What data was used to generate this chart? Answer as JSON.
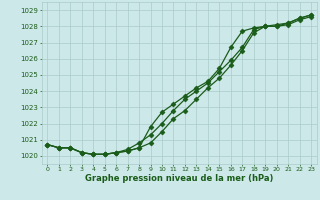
{
  "x": [
    0,
    1,
    2,
    3,
    4,
    5,
    6,
    7,
    8,
    9,
    10,
    11,
    12,
    13,
    14,
    15,
    16,
    17,
    18,
    19,
    20,
    21,
    22,
    23
  ],
  "line1": [
    1020.7,
    1020.5,
    1020.5,
    1020.2,
    1020.1,
    1020.1,
    1020.2,
    1020.4,
    1020.8,
    1021.3,
    1022.0,
    1022.8,
    1023.5,
    1024.0,
    1024.5,
    1025.2,
    1025.9,
    1026.7,
    1027.8,
    1028.0,
    1028.0,
    1028.2,
    1028.5,
    1028.7
  ],
  "line2": [
    1020.7,
    1020.5,
    1020.5,
    1020.2,
    1020.1,
    1020.1,
    1020.2,
    1020.3,
    1020.5,
    1020.8,
    1021.5,
    1022.3,
    1022.8,
    1023.5,
    1024.2,
    1024.8,
    1025.6,
    1026.5,
    1027.6,
    1028.0,
    1028.0,
    1028.1,
    1028.4,
    1028.6
  ],
  "line3": [
    1020.7,
    1020.5,
    1020.5,
    1020.2,
    1020.1,
    1020.1,
    1020.2,
    1020.3,
    1020.5,
    1021.8,
    1022.7,
    1023.2,
    1023.7,
    1024.2,
    1024.6,
    1025.4,
    1026.7,
    1027.7,
    1027.9,
    1028.0,
    1028.1,
    1028.2,
    1028.5,
    1028.7
  ],
  "ylim": [
    1019.5,
    1029.5
  ],
  "yticks": [
    1020,
    1021,
    1022,
    1023,
    1024,
    1025,
    1026,
    1027,
    1028,
    1029
  ],
  "xlim": [
    -0.5,
    23.5
  ],
  "bg_color": "#cde8e8",
  "line_color": "#1a5c1a",
  "grid_color": "#aacaca",
  "xlabel": "Graphe pression niveau de la mer (hPa)",
  "marker": "D",
  "figwidth": 3.2,
  "figheight": 2.0,
  "dpi": 100
}
